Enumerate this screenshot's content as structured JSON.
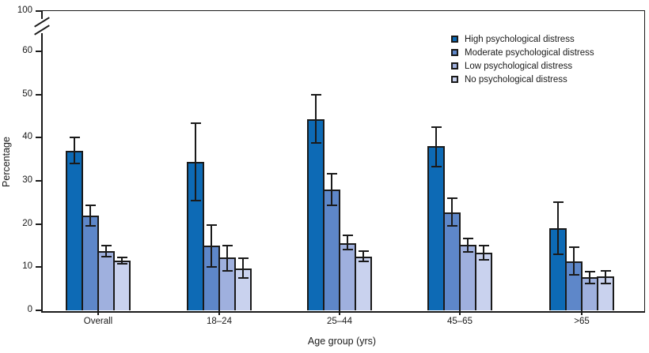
{
  "chart_data": {
    "type": "bar",
    "title": "",
    "xlabel": "Age group (yrs)",
    "ylabel": "Percentage",
    "categories": [
      "Overall",
      "18–24",
      "25–44",
      "45–65",
      ">65"
    ],
    "yticks": [
      0,
      10,
      20,
      30,
      40,
      50,
      60,
      100
    ],
    "ylim": [
      0,
      100
    ],
    "axis_break": {
      "between": [
        60,
        100
      ]
    },
    "grid": false,
    "legend_position": "top-right",
    "axis_color": "#1a1a1a",
    "error_bars": true,
    "series": [
      {
        "name": "High psychological distress",
        "slug": "high",
        "color": "#0d6ab5",
        "values": [
          37,
          34.3,
          44.3,
          38,
          19
        ],
        "error_low": [
          34,
          25.5,
          38.7,
          33.3,
          13
        ],
        "error_high": [
          40,
          43.3,
          50,
          42.4,
          25
        ]
      },
      {
        "name": "Moderate psychological distress",
        "slug": "moderate",
        "color": "#5e87c9",
        "values": [
          22,
          15,
          28,
          22.7,
          11.4
        ],
        "error_low": [
          19.6,
          10,
          24.3,
          19.5,
          8.2
        ],
        "error_high": [
          24.4,
          19.8,
          31.7,
          26,
          14.7
        ]
      },
      {
        "name": "Low psychological distress",
        "slug": "low",
        "color": "#9fb0de",
        "values": [
          13.8,
          12.2,
          15.6,
          15.2,
          7.6
        ],
        "error_low": [
          12.5,
          9.1,
          14,
          13.5,
          6.2
        ],
        "error_high": [
          15,
          15,
          17.3,
          16.7,
          8.9
        ]
      },
      {
        "name": "No psychological distress",
        "slug": "no",
        "color": "#c9d2ee",
        "values": [
          11.5,
          9.6,
          12.5,
          13.4,
          7.8
        ],
        "error_low": [
          10.8,
          7.5,
          11.3,
          11.7,
          6.3
        ],
        "error_high": [
          12.3,
          12,
          13.8,
          15,
          9.2
        ]
      }
    ]
  }
}
